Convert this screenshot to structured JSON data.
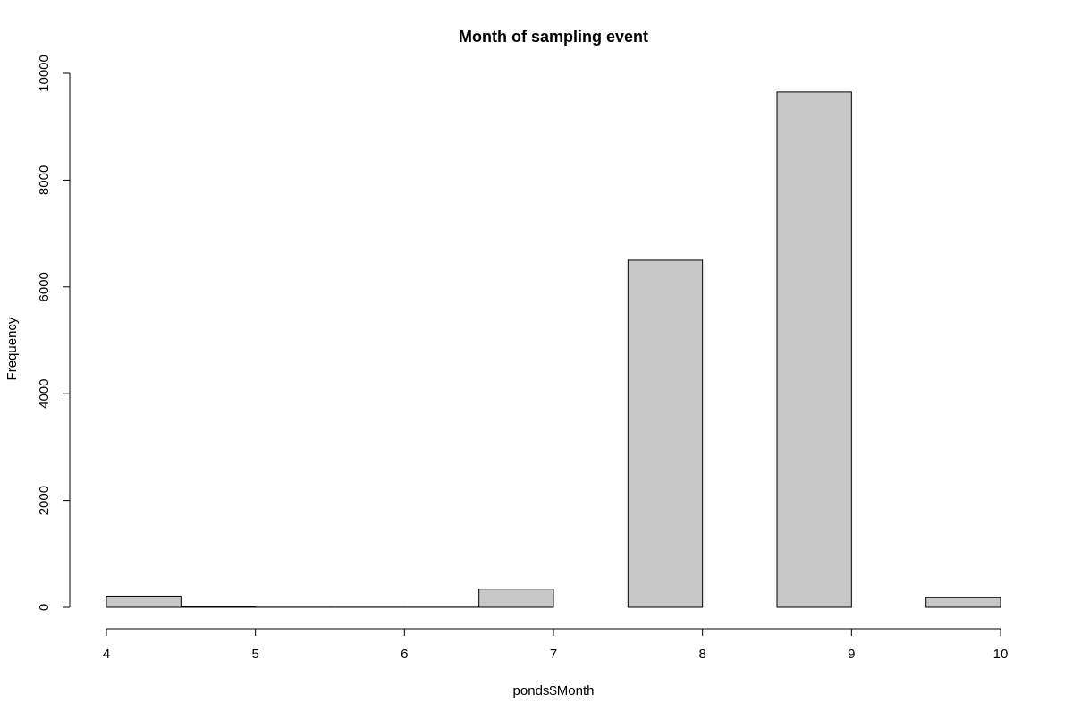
{
  "chart_data": {
    "type": "bar",
    "subtype": "histogram",
    "title": "Month of sampling event",
    "xlabel": "ponds$Month",
    "ylabel": "Frequency",
    "bins": [
      {
        "start": 4.0,
        "end": 4.5,
        "count": 210
      },
      {
        "start": 4.5,
        "end": 5.0,
        "count": 8
      },
      {
        "start": 5.0,
        "end": 5.5,
        "count": 2
      },
      {
        "start": 5.5,
        "end": 6.0,
        "count": 2
      },
      {
        "start": 6.0,
        "end": 6.5,
        "count": 2
      },
      {
        "start": 6.5,
        "end": 7.0,
        "count": 340
      },
      {
        "start": 7.0,
        "end": 7.5,
        "count": 0
      },
      {
        "start": 7.5,
        "end": 8.0,
        "count": 6500
      },
      {
        "start": 8.0,
        "end": 8.5,
        "count": 0
      },
      {
        "start": 8.5,
        "end": 9.0,
        "count": 9650
      },
      {
        "start": 9.0,
        "end": 9.5,
        "count": 0
      },
      {
        "start": 9.5,
        "end": 10.0,
        "count": 180
      }
    ],
    "xlim": [
      4,
      10
    ],
    "ylim": [
      0,
      10000
    ],
    "xticks": [
      4,
      5,
      6,
      7,
      8,
      9,
      10
    ],
    "yticks": [
      0,
      2000,
      4000,
      6000,
      8000,
      10000
    ],
    "grid": false,
    "bar_fill": "#c8c8c8",
    "bar_stroke": "#000000"
  }
}
